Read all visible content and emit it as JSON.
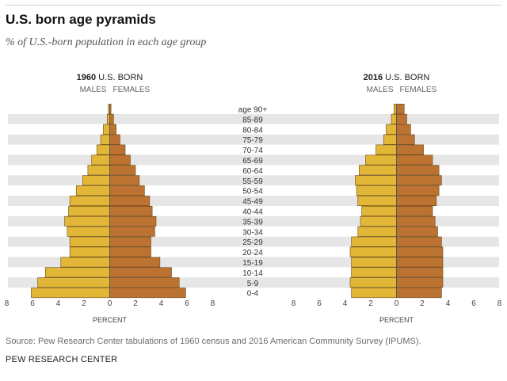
{
  "header": {
    "title": "U.S. born age pyramids",
    "subtitle": "% of U.S.-born population in each age group"
  },
  "footer": {
    "source": "Source: Pew Research Center tabulations of 1960 census and 2016 American Community Survey (IPUMS).",
    "org": "PEW RESEARCH CENTER"
  },
  "chart_data": {
    "type": "bar",
    "orientation": "horizontal-pyramid",
    "age_groups": [
      "age 90+",
      "85-89",
      "80-84",
      "75-79",
      "70-74",
      "65-69",
      "60-64",
      "55-59",
      "50-54",
      "45-49",
      "40-44",
      "35-39",
      "30-34",
      "25-29",
      "20-24",
      "15-19",
      "10-14",
      "5-9",
      "0-4"
    ],
    "xlabel": "PERCENT",
    "xticks": [
      "8",
      "6",
      "4",
      "2",
      "0",
      "2",
      "4",
      "6",
      "8"
    ],
    "xlim": [
      0,
      8
    ],
    "colors": {
      "males": "#e2b636",
      "females": "#bc7332",
      "stripe": "#e6e6e6",
      "outline": "#6b4a1c"
    },
    "pyramids": [
      {
        "year": "1960",
        "title_rest": "U.S. BORN",
        "males_label": "MALES",
        "females_label": "FEMALES",
        "males": [
          0.1,
          0.2,
          0.5,
          0.7,
          1.0,
          1.4,
          1.7,
          2.1,
          2.6,
          3.1,
          3.2,
          3.5,
          3.3,
          3.1,
          3.1,
          3.8,
          5.0,
          5.6,
          6.1
        ],
        "females": [
          0.1,
          0.3,
          0.5,
          0.8,
          1.2,
          1.6,
          2.0,
          2.3,
          2.7,
          3.1,
          3.3,
          3.6,
          3.5,
          3.2,
          3.2,
          3.9,
          4.8,
          5.4,
          5.9
        ]
      },
      {
        "year": "2016",
        "title_rest": "U.S. BORN",
        "males_label": "MALES",
        "females_label": "FEMALES",
        "males": [
          0.2,
          0.4,
          0.8,
          1.0,
          1.6,
          2.4,
          2.9,
          3.2,
          3.1,
          3.0,
          2.7,
          2.8,
          3.0,
          3.5,
          3.6,
          3.5,
          3.5,
          3.6,
          3.5
        ],
        "females": [
          0.6,
          0.8,
          1.1,
          1.4,
          2.1,
          2.8,
          3.3,
          3.5,
          3.3,
          3.1,
          2.8,
          3.0,
          3.2,
          3.5,
          3.6,
          3.6,
          3.6,
          3.6,
          3.5
        ]
      }
    ]
  }
}
